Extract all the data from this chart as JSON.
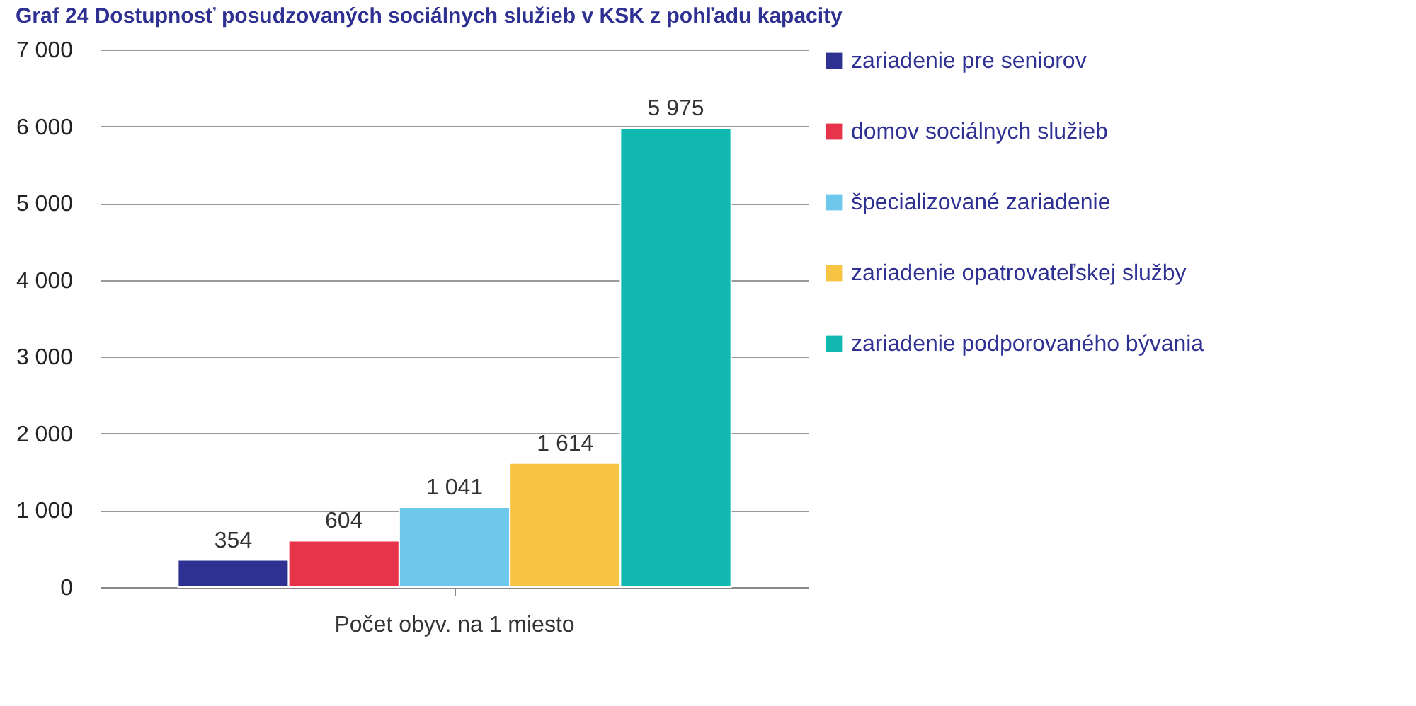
{
  "chart_data": {
    "type": "bar",
    "title": "Graf 24 Dostupnosť posudzovaných sociálnych služieb v KSK z pohľadu kapacity",
    "categories": [
      "Počet obyv. na 1 miesto"
    ],
    "series": [
      {
        "name": "zariadenie pre seniorov",
        "color": "#2e3192",
        "values": [
          354
        ],
        "value_labels": [
          "354"
        ]
      },
      {
        "name": "domov sociálnych služieb",
        "color": "#e8344a",
        "values": [
          604
        ],
        "value_labels": [
          "604"
        ]
      },
      {
        "name": "špecializované zariadenie",
        "color": "#6ec8ec",
        "values": [
          1041
        ],
        "value_labels": [
          "1 041"
        ]
      },
      {
        "name": "zariadenie opatrovateľskej služby",
        "color": "#f7c443",
        "values": [
          1614
        ],
        "value_labels": [
          "1 614"
        ]
      },
      {
        "name": "zariadenie podporovaného bývania",
        "color": "#10b8b0",
        "values": [
          5975
        ],
        "value_labels": [
          "5 975"
        ]
      }
    ],
    "ylim": [
      0,
      7000
    ],
    "yticks": [
      {
        "value": 0,
        "label": "0"
      },
      {
        "value": 1000,
        "label": "1 000"
      },
      {
        "value": 2000,
        "label": "2 000"
      },
      {
        "value": 3000,
        "label": "3 000"
      },
      {
        "value": 4000,
        "label": "4 000"
      },
      {
        "value": 5000,
        "label": "5 000"
      },
      {
        "value": 6000,
        "label": "6 000"
      },
      {
        "value": 7000,
        "label": "7 000"
      }
    ],
    "grid": "y",
    "legend": "right"
  }
}
